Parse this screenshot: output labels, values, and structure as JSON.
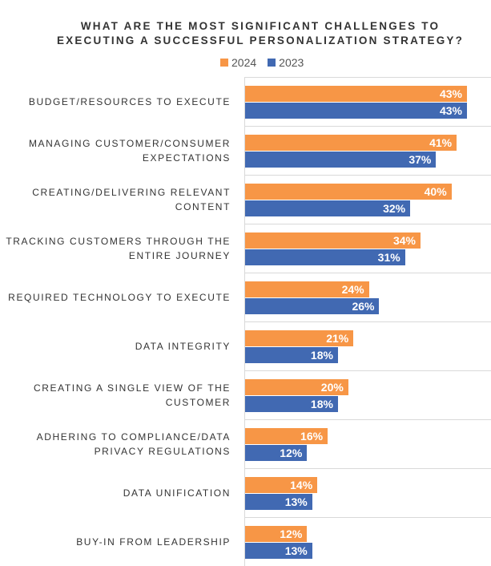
{
  "chart_data": {
    "type": "bar",
    "orientation": "horizontal",
    "title": "WHAT ARE THE MOST SIGNIFICANT CHALLENGES TO EXECUTING A SUCCESSFUL PERSONALIZATION STRATEGY?",
    "title_lines": [
      "WHAT ARE THE MOST SIGNIFICANT CHALLENGES TO",
      "EXECUTING A SUCCESSFUL PERSONALIZATION STRATEGY?"
    ],
    "categories": [
      [
        "BUDGET/RESOURCES TO EXECUTE"
      ],
      [
        "MANAGING CUSTOMER/CONSUMER",
        "EXPECTATIONS"
      ],
      [
        "CREATING/DELIVERING RELEVANT",
        "CONTENT"
      ],
      [
        "TRACKING CUSTOMERS THROUGH THE",
        "ENTIRE JOURNEY"
      ],
      [
        "REQUIRED TECHNOLOGY TO EXECUTE"
      ],
      [
        "DATA INTEGRITY"
      ],
      [
        "CREATING A SINGLE VIEW OF THE",
        "CUSTOMER"
      ],
      [
        "ADHERING TO COMPLIANCE/DATA",
        "PRIVACY REGULATIONS"
      ],
      [
        "DATA UNIFICATION"
      ],
      [
        "BUY-IN FROM LEADERSHIP"
      ]
    ],
    "series": [
      {
        "name": "2024",
        "color": "#F79646",
        "values": [
          43,
          41,
          40,
          34,
          24,
          21,
          20,
          16,
          14,
          12
        ]
      },
      {
        "name": "2023",
        "color": "#4169B2",
        "values": [
          43,
          37,
          32,
          31,
          26,
          18,
          18,
          12,
          13,
          13
        ]
      }
    ],
    "value_suffix": "%",
    "legend_position": "top",
    "grid": false,
    "xlim": [
      0,
      47
    ]
  }
}
